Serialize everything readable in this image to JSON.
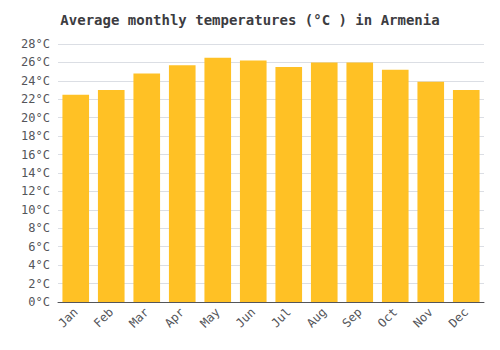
{
  "chart_data": {
    "type": "bar",
    "title": "Average monthly temperatures (°C ) in Armenia",
    "categories": [
      "Jan",
      "Feb",
      "Mar",
      "Apr",
      "May",
      "Jun",
      "Jul",
      "Aug",
      "Sep",
      "Oct",
      "Nov",
      "Dec"
    ],
    "values": [
      22.5,
      23.0,
      24.8,
      25.7,
      26.5,
      26.2,
      25.5,
      26.0,
      26.0,
      25.2,
      23.9,
      23.0
    ],
    "color": "#FFC125",
    "ylim": [
      0,
      28
    ],
    "yticks": [
      {
        "value": 0,
        "label": "0°C"
      },
      {
        "value": 2,
        "label": "2°C"
      },
      {
        "value": 4,
        "label": "4°C"
      },
      {
        "value": 6,
        "label": "6°C"
      },
      {
        "value": 8,
        "label": "8°C"
      },
      {
        "value": 10,
        "label": "10°C"
      },
      {
        "value": 12,
        "label": "12°C"
      },
      {
        "value": 14,
        "label": "14°C"
      },
      {
        "value": 16,
        "label": "16°C"
      },
      {
        "value": 18,
        "label": "18°C"
      },
      {
        "value": 20,
        "label": "20°C"
      },
      {
        "value": 22,
        "label": "22°C"
      },
      {
        "value": 24,
        "label": "24°C"
      },
      {
        "value": 26,
        "label": "26°C"
      },
      {
        "value": 28,
        "label": "28°C"
      }
    ],
    "grid": true
  }
}
